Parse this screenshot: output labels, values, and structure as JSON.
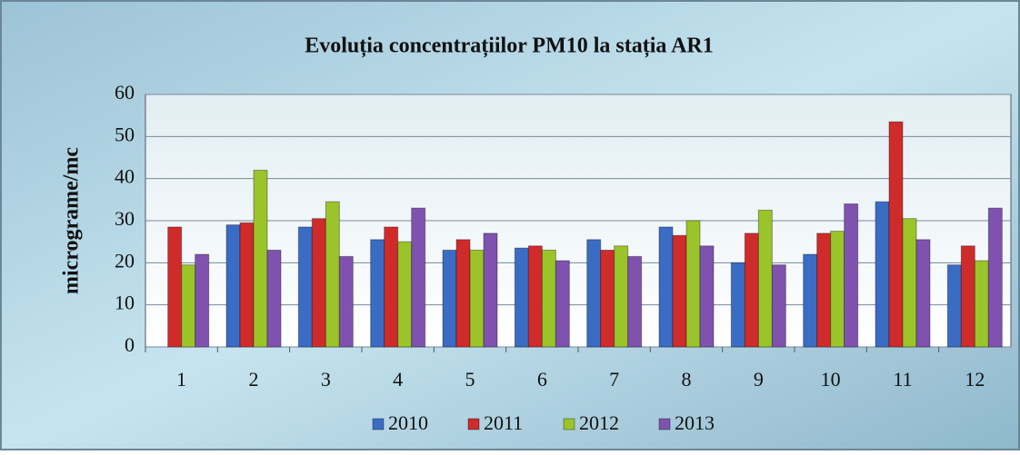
{
  "chart_data": {
    "type": "bar",
    "title": "Evoluția concentrațiilor PM10 la stația AR1",
    "y_label": "micrograme/mc",
    "categories": [
      "1",
      "2",
      "3",
      "4",
      "5",
      "6",
      "7",
      "8",
      "9",
      "10",
      "11",
      "12"
    ],
    "series": [
      {
        "name": "2010",
        "color": "#3a6cc4",
        "values": [
          null,
          29,
          28.5,
          25.5,
          23,
          23.5,
          25.5,
          28.5,
          20,
          22,
          34.5,
          19.5
        ]
      },
      {
        "name": "2011",
        "color": "#d02b2b",
        "values": [
          28.5,
          29.5,
          30.5,
          28.5,
          25.5,
          24,
          23,
          26.5,
          27,
          27,
          53.5,
          24
        ]
      },
      {
        "name": "2012",
        "color": "#9bc42a",
        "values": [
          19.5,
          42,
          34.5,
          25,
          23,
          23,
          24,
          30,
          32.5,
          27.5,
          30.5,
          20.5
        ]
      },
      {
        "name": "2013",
        "color": "#8052b0",
        "values": [
          22,
          23,
          21.5,
          33,
          27,
          20.5,
          21.5,
          24,
          19.5,
          34,
          25.5,
          33
        ]
      }
    ],
    "ylim": [
      0,
      60
    ],
    "yticks": [
      0,
      10,
      20,
      30,
      40,
      50,
      60
    ],
    "grid": true,
    "legend": "bottom"
  }
}
